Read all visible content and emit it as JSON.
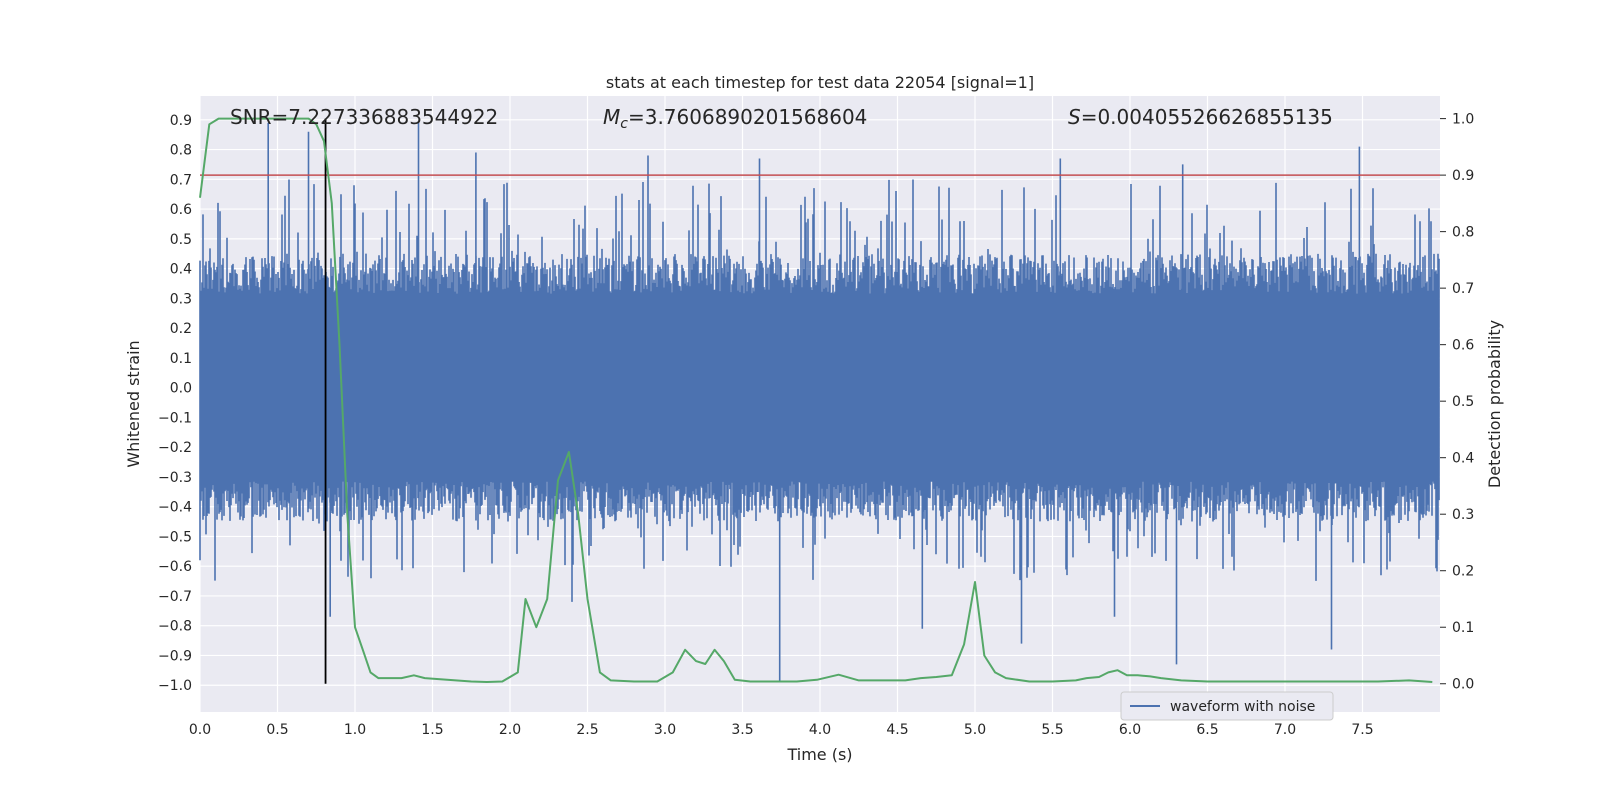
{
  "chart_data": {
    "type": "line",
    "title": "stats at each timestep for test data 22054 [signal=1]",
    "xlabel": "Time (s)",
    "ylabel_left": "Whitened strain",
    "ylabel_right": "Detection probability",
    "xlim": [
      0.0,
      8.0
    ],
    "ylim_left": [
      -1.09,
      0.98
    ],
    "ylim_right": [
      -0.05,
      1.04
    ],
    "x_ticks": [
      "0.0",
      "0.5",
      "1.0",
      "1.5",
      "2.0",
      "2.5",
      "3.0",
      "3.5",
      "4.0",
      "4.5",
      "5.0",
      "5.5",
      "6.0",
      "6.5",
      "7.0",
      "7.5"
    ],
    "y_ticks_left": [
      "0.9",
      "0.8",
      "0.7",
      "0.6",
      "0.5",
      "0.4",
      "0.3",
      "0.2",
      "0.1",
      "0.0",
      "−0.1",
      "−0.2",
      "−0.3",
      "−0.4",
      "−0.5",
      "−0.6",
      "−0.7",
      "−0.8",
      "−0.9",
      "−1.0"
    ],
    "y_ticks_right": [
      "1.0",
      "0.9",
      "0.8",
      "0.7",
      "0.6",
      "0.5",
      "0.4",
      "0.3",
      "0.2",
      "0.1",
      "0.0"
    ],
    "annotations": {
      "snr": "SNR=7.227336883544922",
      "mc_symbol": "M",
      "mc_sub": "c",
      "mc_value": "=3.7606890201568604",
      "s_symbol": "S",
      "s_value": "=0.00405526626855135"
    },
    "threshold": {
      "value": 0.9,
      "axis": "right",
      "color": "#c44e52"
    },
    "marker_time": 0.81,
    "legend": {
      "label": "waveform with noise",
      "position": "lower-right"
    },
    "series": [
      {
        "name": "waveform with noise",
        "axis": "left",
        "color": "#4c72b0",
        "band": [
          -0.45,
          0.45
        ],
        "upper_peaks": [
          [
            0.44,
            0.89
          ],
          [
            0.7,
            0.86
          ],
          [
            1.41,
            0.89
          ],
          [
            1.78,
            0.79
          ],
          [
            2.89,
            0.78
          ],
          [
            3.61,
            0.77
          ],
          [
            5.55,
            0.77
          ],
          [
            6.34,
            0.75
          ],
          [
            7.48,
            0.81
          ]
        ],
        "lower_peaks": [
          [
            0.84,
            -0.77
          ],
          [
            3.74,
            -0.99
          ],
          [
            4.66,
            -0.81
          ],
          [
            5.3,
            -0.86
          ],
          [
            6.3,
            -0.93
          ],
          [
            7.3,
            -0.88
          ],
          [
            5.9,
            -0.77
          ],
          [
            2.4,
            -0.72
          ]
        ]
      },
      {
        "name": "detection probability",
        "axis": "right",
        "color": "#55a868",
        "x": [
          0.0,
          0.06,
          0.12,
          0.2,
          0.3,
          0.4,
          0.5,
          0.6,
          0.7,
          0.75,
          0.8,
          0.85,
          0.9,
          0.95,
          1.0,
          1.05,
          1.1,
          1.15,
          1.2,
          1.3,
          1.38,
          1.45,
          1.55,
          1.65,
          1.75,
          1.85,
          1.95,
          2.05,
          2.1,
          2.17,
          2.24,
          2.31,
          2.38,
          2.44,
          2.5,
          2.58,
          2.65,
          2.8,
          2.95,
          3.05,
          3.13,
          3.2,
          3.26,
          3.32,
          3.38,
          3.45,
          3.55,
          3.7,
          3.85,
          3.98,
          4.12,
          4.25,
          4.4,
          4.55,
          4.65,
          4.75,
          4.85,
          4.93,
          5.0,
          5.06,
          5.13,
          5.2,
          5.35,
          5.5,
          5.65,
          5.72,
          5.8,
          5.86,
          5.92,
          5.98,
          6.05,
          6.13,
          6.2,
          6.33,
          6.5,
          6.8,
          7.0,
          7.3,
          7.6,
          7.8,
          7.95
        ],
        "y": [
          0.86,
          0.99,
          1.0,
          1.0,
          1.0,
          1.0,
          1.0,
          1.0,
          1.0,
          0.99,
          0.96,
          0.85,
          0.6,
          0.3,
          0.1,
          0.06,
          0.02,
          0.01,
          0.01,
          0.01,
          0.015,
          0.01,
          0.008,
          0.006,
          0.004,
          0.003,
          0.004,
          0.02,
          0.15,
          0.1,
          0.15,
          0.36,
          0.41,
          0.3,
          0.15,
          0.02,
          0.006,
          0.004,
          0.004,
          0.02,
          0.06,
          0.04,
          0.035,
          0.06,
          0.04,
          0.007,
          0.004,
          0.004,
          0.004,
          0.007,
          0.016,
          0.006,
          0.006,
          0.006,
          0.01,
          0.012,
          0.015,
          0.07,
          0.18,
          0.05,
          0.02,
          0.01,
          0.004,
          0.004,
          0.006,
          0.01,
          0.012,
          0.02,
          0.024,
          0.015,
          0.015,
          0.013,
          0.01,
          0.006,
          0.004,
          0.004,
          0.004,
          0.004,
          0.004,
          0.006,
          0.003
        ]
      }
    ]
  }
}
